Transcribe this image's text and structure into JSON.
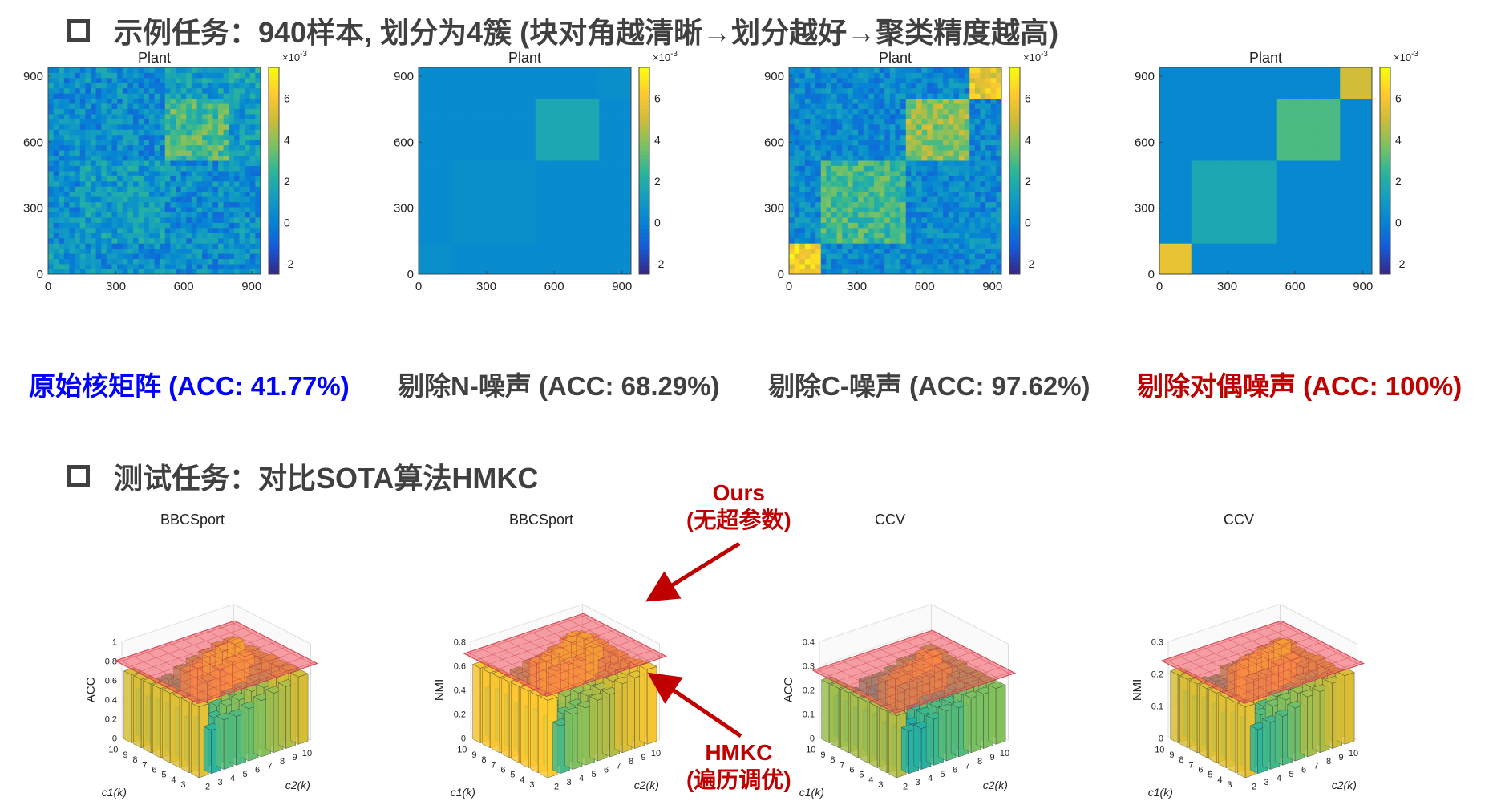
{
  "section1": {
    "title": "示例任务：940样本, 划分为4簇 (块对角越清晰→划分越好→聚类精度越高)"
  },
  "section2": {
    "title": "测试任务：对比SOTA算法HMKC"
  },
  "heatmaps": [
    {
      "title": "Plant",
      "caption": "原始核矩阵 (ACC: 41.77%)",
      "caption_color": "#0000ff",
      "variant": "noisy"
    },
    {
      "title": "Plant",
      "caption": "剔除N-噪声 (ACC: 68.29%)",
      "caption_color": "#404040",
      "variant": "flat"
    },
    {
      "title": "Plant",
      "caption": "剔除C-噪声 (ACC: 97.62%)",
      "caption_color": "#404040",
      "variant": "blocky-noisy"
    },
    {
      "title": "Plant",
      "caption": "剔除对偶噪声 (ACC: 100%)",
      "caption_color": "#c00000",
      "variant": "clean"
    }
  ],
  "heatmap_axes": {
    "x_ticks": [
      "0",
      "300",
      "600",
      "900"
    ],
    "y_ticks": [
      "0",
      "300",
      "600",
      "900"
    ],
    "colorbar_ticks": [
      "-2",
      "0",
      "2",
      "4",
      "6"
    ],
    "colorbar_exponent": "×10",
    "colorbar_exponent_power": "-3"
  },
  "bars3d": [
    {
      "title": "BBCSport",
      "zlabel": "ACC",
      "zticks": [
        "0",
        "0.2",
        "0.4",
        "0.6",
        "0.8",
        "1"
      ]
    },
    {
      "title": "BBCSport",
      "zlabel": "NMI",
      "zticks": [
        "0",
        "0.2",
        "0.4",
        "0.6",
        "0.8"
      ]
    },
    {
      "title": "CCV",
      "zlabel": "ACC",
      "zticks": [
        "0",
        "0.1",
        "0.2",
        "0.3",
        "0.4"
      ]
    },
    {
      "title": "CCV",
      "zlabel": "NMI",
      "zticks": [
        "0",
        "0.1",
        "0.2",
        "0.3"
      ]
    }
  ],
  "bars3d_axes": {
    "c1_ticks": [
      "3",
      "4",
      "5",
      "6",
      "7",
      "8",
      "9",
      "10"
    ],
    "c2_ticks": [
      "2",
      "3",
      "4",
      "5",
      "6",
      "7",
      "8",
      "9",
      "10"
    ],
    "c1_label": "c1(k)",
    "c2_label": "c2(k)"
  },
  "annotations": {
    "ours_line1": "Ours",
    "ours_line2": "(无超参数)",
    "hmkc_line1": "HMKC",
    "hmkc_line2": "(遍历调优)"
  },
  "chart_data": [
    {
      "type": "heatmap",
      "title": "Plant",
      "x_range": [
        0,
        940
      ],
      "y_range": [
        0,
        940
      ],
      "color_range": [
        -0.0025,
        0.0075
      ],
      "clusters": 4,
      "block_bounds": [
        0,
        150,
        520,
        790,
        940
      ],
      "acc": 41.77
    },
    {
      "type": "heatmap",
      "title": "Plant",
      "x_range": [
        0,
        940
      ],
      "y_range": [
        0,
        940
      ],
      "color_range": [
        -0.0025,
        0.0075
      ],
      "clusters": 4,
      "block_bounds": [
        0,
        150,
        520,
        790,
        940
      ],
      "acc": 68.29
    },
    {
      "type": "heatmap",
      "title": "Plant",
      "x_range": [
        0,
        940
      ],
      "y_range": [
        0,
        940
      ],
      "color_range": [
        -0.0025,
        0.0075
      ],
      "clusters": 4,
      "block_bounds": [
        0,
        150,
        520,
        790,
        940
      ],
      "acc": 97.62
    },
    {
      "type": "heatmap",
      "title": "Plant",
      "x_range": [
        0,
        940
      ],
      "y_range": [
        0,
        940
      ],
      "color_range": [
        -0.0025,
        0.0075
      ],
      "clusters": 4,
      "block_bounds": [
        0,
        150,
        520,
        790,
        940
      ],
      "acc": 100
    },
    {
      "type": "bar",
      "title": "BBCSport",
      "zlabel": "ACC",
      "ours": 0.8,
      "zlim": [
        0,
        1
      ]
    },
    {
      "type": "bar",
      "title": "BBCSport",
      "zlabel": "NMI",
      "ours": 0.7,
      "zlim": [
        0,
        0.8
      ]
    },
    {
      "type": "bar",
      "title": "CCV",
      "zlabel": "ACC",
      "ours": 0.28,
      "zlim": [
        0,
        0.4
      ]
    },
    {
      "type": "bar",
      "title": "CCV",
      "zlabel": "NMI",
      "ours": 0.24,
      "zlim": [
        0,
        0.3
      ]
    }
  ]
}
